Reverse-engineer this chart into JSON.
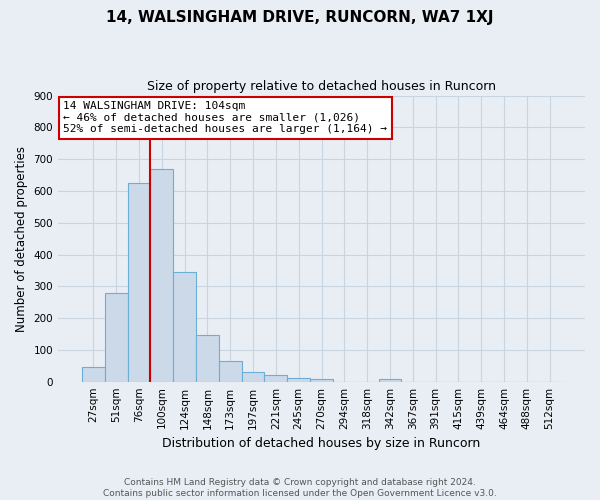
{
  "title": "14, WALSINGHAM DRIVE, RUNCORN, WA7 1XJ",
  "subtitle": "Size of property relative to detached houses in Runcorn",
  "xlabel": "Distribution of detached houses by size in Runcorn",
  "ylabel": "Number of detached properties",
  "bar_labels": [
    "27sqm",
    "51sqm",
    "76sqm",
    "100sqm",
    "124sqm",
    "148sqm",
    "173sqm",
    "197sqm",
    "221sqm",
    "245sqm",
    "270sqm",
    "294sqm",
    "318sqm",
    "342sqm",
    "367sqm",
    "391sqm",
    "415sqm",
    "439sqm",
    "464sqm",
    "488sqm",
    "512sqm"
  ],
  "bar_values": [
    45,
    280,
    625,
    670,
    345,
    148,
    65,
    30,
    20,
    12,
    8,
    0,
    0,
    8,
    0,
    0,
    0,
    0,
    0,
    0,
    0
  ],
  "bar_color": "#ccd9e8",
  "bar_edge_color": "#6baed6",
  "vline_color": "#cc0000",
  "ylim": [
    0,
    900
  ],
  "yticks": [
    0,
    100,
    200,
    300,
    400,
    500,
    600,
    700,
    800,
    900
  ],
  "annotation_text": "14 WALSINGHAM DRIVE: 104sqm\n← 46% of detached houses are smaller (1,026)\n52% of semi-detached houses are larger (1,164) →",
  "annotation_box_color": "#ffffff",
  "annotation_box_edge": "#cc0000",
  "footer_text": "Contains HM Land Registry data © Crown copyright and database right 2024.\nContains public sector information licensed under the Open Government Licence v3.0.",
  "grid_color": "#c8d4e0",
  "background_color": "#e8eef4",
  "title_fontsize": 11,
  "subtitle_fontsize": 9,
  "ylabel_fontsize": 8.5,
  "xlabel_fontsize": 9,
  "tick_fontsize": 7.5,
  "footer_fontsize": 6.5,
  "annotation_fontsize": 8
}
